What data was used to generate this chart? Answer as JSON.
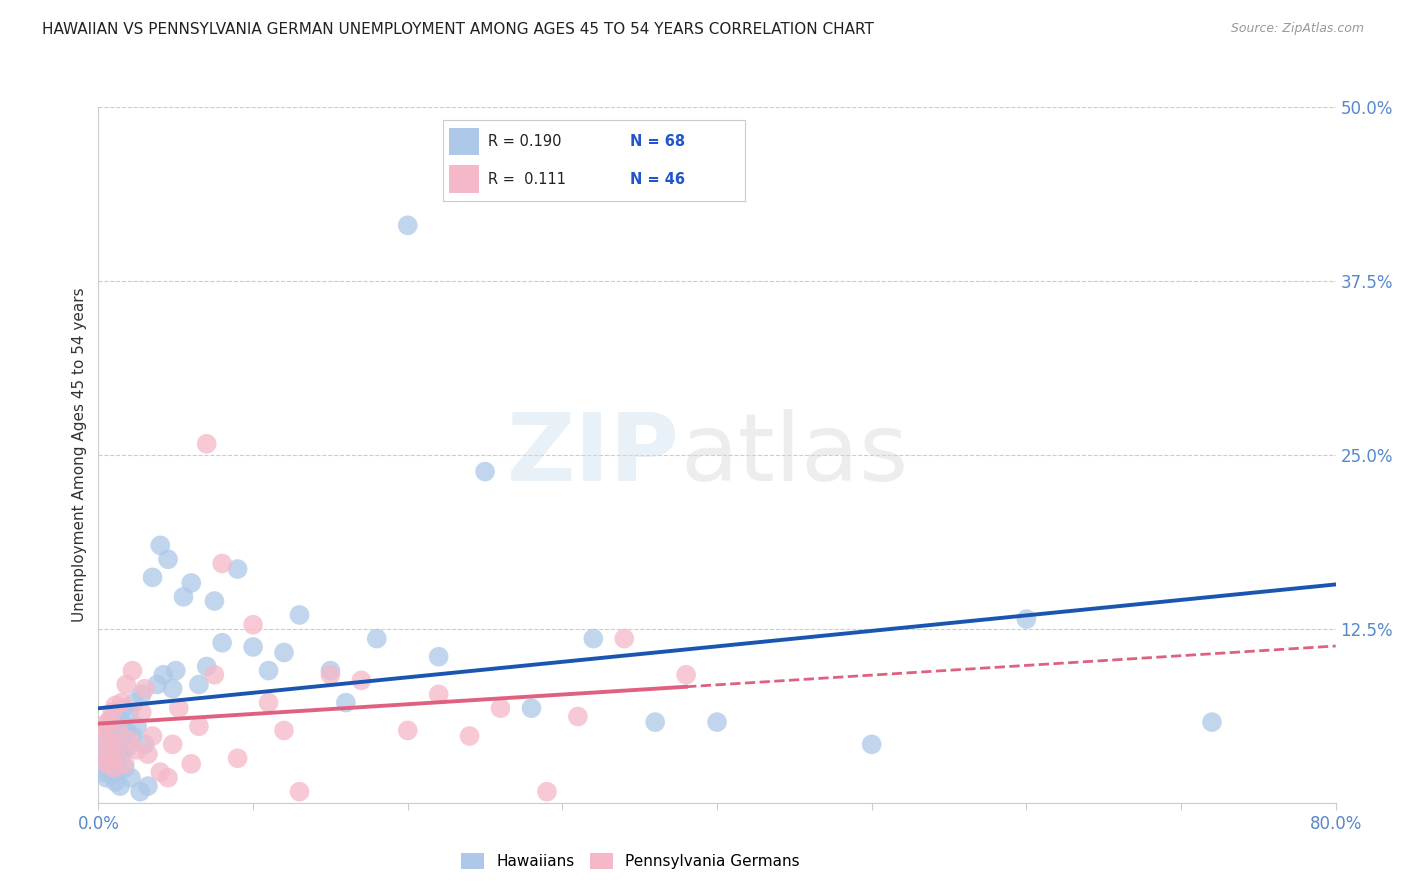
{
  "title": "HAWAIIAN VS PENNSYLVANIA GERMAN UNEMPLOYMENT AMONG AGES 45 TO 54 YEARS CORRELATION CHART",
  "source": "Source: ZipAtlas.com",
  "ylabel": "Unemployment Among Ages 45 to 54 years",
  "xlim": [
    0.0,
    0.8
  ],
  "ylim": [
    0.0,
    0.5
  ],
  "hawaiian_color": "#adc8e8",
  "pennsylvania_color": "#f5b8c8",
  "line_blue": "#1a56b0",
  "line_pink": "#e06080",
  "hawaiian_x": [
    0.002,
    0.003,
    0.004,
    0.005,
    0.005,
    0.006,
    0.006,
    0.007,
    0.007,
    0.008,
    0.008,
    0.009,
    0.009,
    0.01,
    0.01,
    0.011,
    0.011,
    0.012,
    0.012,
    0.013,
    0.013,
    0.014,
    0.015,
    0.015,
    0.016,
    0.017,
    0.018,
    0.019,
    0.02,
    0.021,
    0.022,
    0.023,
    0.025,
    0.027,
    0.028,
    0.03,
    0.032,
    0.035,
    0.038,
    0.04,
    0.042,
    0.045,
    0.048,
    0.05,
    0.055,
    0.06,
    0.065,
    0.07,
    0.075,
    0.08,
    0.09,
    0.1,
    0.11,
    0.12,
    0.13,
    0.15,
    0.16,
    0.18,
    0.2,
    0.22,
    0.25,
    0.28,
    0.32,
    0.36,
    0.4,
    0.5,
    0.6,
    0.72
  ],
  "hawaiian_y": [
    0.028,
    0.022,
    0.035,
    0.018,
    0.045,
    0.03,
    0.055,
    0.025,
    0.042,
    0.038,
    0.06,
    0.02,
    0.05,
    0.032,
    0.048,
    0.015,
    0.062,
    0.028,
    0.055,
    0.038,
    0.045,
    0.012,
    0.058,
    0.035,
    0.068,
    0.025,
    0.052,
    0.04,
    0.065,
    0.018,
    0.048,
    0.072,
    0.055,
    0.008,
    0.078,
    0.042,
    0.012,
    0.162,
    0.085,
    0.185,
    0.092,
    0.175,
    0.082,
    0.095,
    0.148,
    0.158,
    0.085,
    0.098,
    0.145,
    0.115,
    0.168,
    0.112,
    0.095,
    0.108,
    0.135,
    0.095,
    0.072,
    0.118,
    0.415,
    0.105,
    0.238,
    0.068,
    0.118,
    0.058,
    0.058,
    0.042,
    0.132,
    0.058
  ],
  "pennsylvania_x": [
    0.002,
    0.003,
    0.004,
    0.005,
    0.006,
    0.007,
    0.008,
    0.009,
    0.01,
    0.011,
    0.012,
    0.013,
    0.015,
    0.017,
    0.018,
    0.02,
    0.022,
    0.025,
    0.028,
    0.03,
    0.032,
    0.035,
    0.04,
    0.045,
    0.048,
    0.052,
    0.06,
    0.065,
    0.07,
    0.075,
    0.08,
    0.09,
    0.1,
    0.11,
    0.12,
    0.13,
    0.15,
    0.17,
    0.2,
    0.22,
    0.24,
    0.26,
    0.29,
    0.31,
    0.34,
    0.38
  ],
  "pennsylvania_y": [
    0.055,
    0.035,
    0.048,
    0.028,
    0.058,
    0.042,
    0.032,
    0.065,
    0.025,
    0.07,
    0.038,
    0.052,
    0.072,
    0.028,
    0.085,
    0.045,
    0.095,
    0.038,
    0.065,
    0.082,
    0.035,
    0.048,
    0.022,
    0.018,
    0.042,
    0.068,
    0.028,
    0.055,
    0.258,
    0.092,
    0.172,
    0.032,
    0.128,
    0.072,
    0.052,
    0.008,
    0.092,
    0.088,
    0.052,
    0.078,
    0.048,
    0.068,
    0.008,
    0.062,
    0.118,
    0.092
  ]
}
